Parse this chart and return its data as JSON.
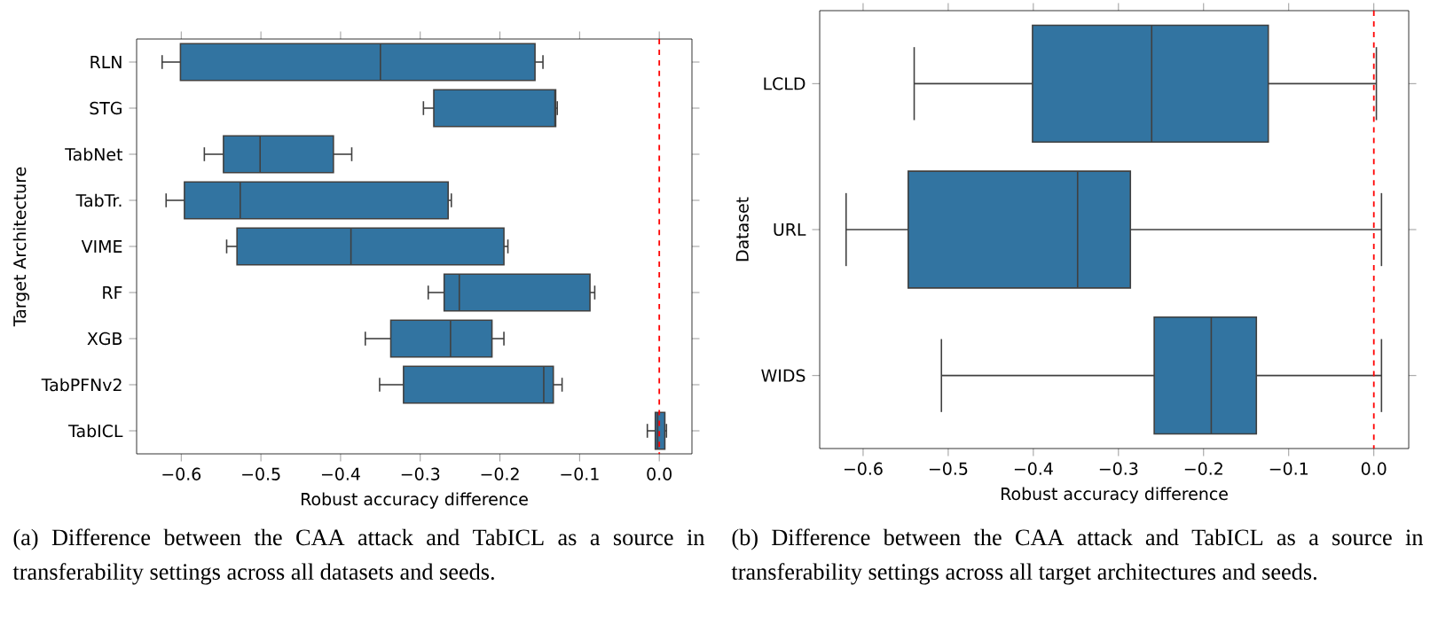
{
  "chart_data": [
    {
      "type": "box",
      "color": "#3274a1",
      "xlabel": "Robust accuracy difference",
      "ylabel": "Target Architecture",
      "categories": [
        "RLN",
        "STG",
        "TabNet",
        "TabTr.",
        "VIME",
        "RF",
        "XGB",
        "TabPFNv2",
        "TabICL"
      ],
      "boxes": [
        {
          "low": -0.624,
          "q1": -0.601,
          "median": -0.35,
          "q3": -0.156,
          "high": -0.146
        },
        {
          "low": -0.296,
          "q1": -0.283,
          "median": -0.131,
          "q3": -0.13,
          "high": -0.128
        },
        {
          "low": -0.571,
          "q1": -0.547,
          "median": -0.501,
          "q3": -0.409,
          "high": -0.386
        },
        {
          "low": -0.619,
          "q1": -0.596,
          "median": -0.526,
          "q3": -0.265,
          "high": -0.261
        },
        {
          "low": -0.543,
          "q1": -0.53,
          "median": -0.387,
          "q3": -0.195,
          "high": -0.19
        },
        {
          "low": -0.29,
          "q1": -0.27,
          "median": -0.251,
          "q3": -0.087,
          "high": -0.081
        },
        {
          "low": -0.369,
          "q1": -0.337,
          "median": -0.262,
          "q3": -0.21,
          "high": -0.195
        },
        {
          "low": -0.351,
          "q1": -0.321,
          "median": -0.145,
          "q3": -0.133,
          "high": -0.122
        },
        {
          "low": -0.015,
          "q1": -0.005,
          "median": -0.002,
          "q3": 0.007,
          "high": 0.009
        }
      ],
      "orientation": "horizontal",
      "xlim": [
        -0.656,
        0.041
      ],
      "xticks": [
        {
          "value": -0.6,
          "label": "−0.6"
        },
        {
          "value": -0.5,
          "label": "−0.5"
        },
        {
          "value": -0.4,
          "label": "−0.4"
        },
        {
          "value": -0.3,
          "label": "−0.3"
        },
        {
          "value": -0.2,
          "label": "−0.2"
        },
        {
          "value": -0.1,
          "label": "−0.1"
        },
        {
          "value": 0.0,
          "label": "0.0"
        }
      ],
      "ref_lines": [
        {
          "axis": "x",
          "value": 0,
          "color": "#ff0000",
          "line_style": "dashed"
        }
      ],
      "annotations": [
        "(a) Difference between the CAA attack and TabICL as a source in transferability settings across all datasets and seeds."
      ]
    },
    {
      "type": "box",
      "color": "#3274a1",
      "xlabel": "Robust accuracy difference",
      "ylabel": "Dataset",
      "categories": [
        "LCLD",
        "URL",
        "WIDS"
      ],
      "boxes": [
        {
          "low": -0.54,
          "q1": -0.401,
          "median": -0.261,
          "q3": -0.124,
          "high": 0.003
        },
        {
          "low": -0.62,
          "q1": -0.547,
          "median": -0.348,
          "q3": -0.286,
          "high": 0.009
        },
        {
          "low": -0.508,
          "q1": -0.258,
          "median": -0.191,
          "q3": -0.138,
          "high": 0.009
        }
      ],
      "orientation": "horizontal",
      "xlim": [
        -0.651,
        0.041
      ],
      "xticks": [
        {
          "value": -0.6,
          "label": "−0.6"
        },
        {
          "value": -0.5,
          "label": "−0.5"
        },
        {
          "value": -0.4,
          "label": "−0.4"
        },
        {
          "value": -0.3,
          "label": "−0.3"
        },
        {
          "value": -0.2,
          "label": "−0.2"
        },
        {
          "value": -0.1,
          "label": "−0.1"
        },
        {
          "value": 0.0,
          "label": "0.0"
        }
      ],
      "ref_lines": [
        {
          "axis": "x",
          "value": 0,
          "color": "#ff0000",
          "line_style": "dashed"
        }
      ],
      "annotations": [
        "(b) Difference between the CAA attack and TabICL as a source in transferability settings across all target architectures and seeds."
      ]
    }
  ]
}
